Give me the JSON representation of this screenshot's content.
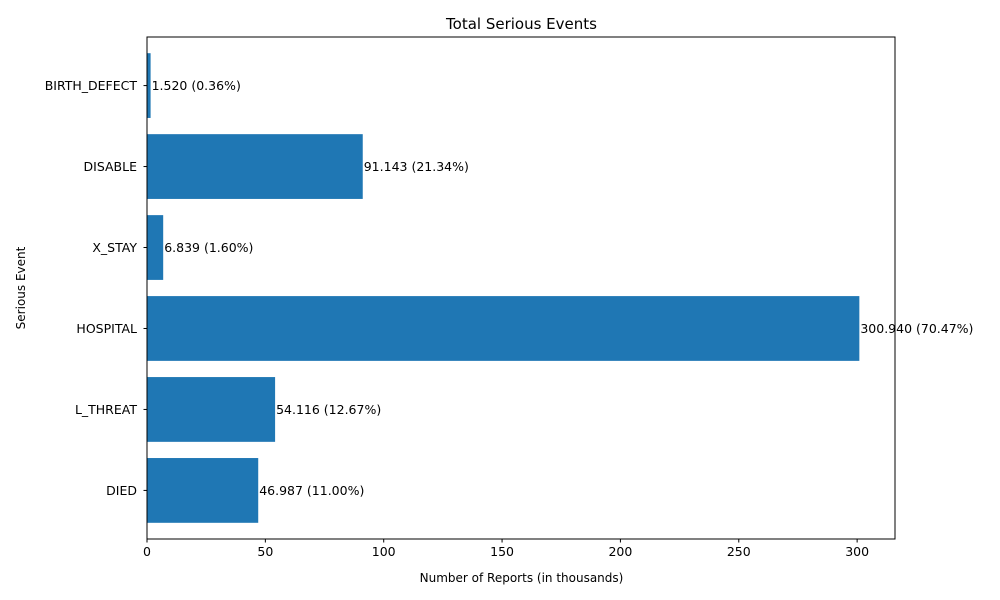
{
  "chart_data": {
    "type": "bar",
    "orientation": "horizontal",
    "title": "Total Serious Events",
    "xlabel": "Number of Reports (in thousands)",
    "ylabel": "Serious Event",
    "categories": [
      "DIED",
      "L_THREAT",
      "HOSPITAL",
      "X_STAY",
      "DISABLE",
      "BIRTH_DEFECT"
    ],
    "values": [
      46.987,
      54.116,
      300.94,
      6.839,
      91.143,
      1.52
    ],
    "data_labels": [
      "46.987 (11.00%)",
      "54.116 (12.67%)",
      "300.940 (70.47%)",
      "6.839 (1.60%)",
      "91.143 (21.34%)",
      "1.520 (0.36%)"
    ],
    "xlim": [
      0,
      316
    ],
    "xticks": [
      0,
      50,
      100,
      150,
      200,
      250,
      300
    ],
    "bar_color": "#1f77b4",
    "grid": false,
    "legend": "none"
  }
}
